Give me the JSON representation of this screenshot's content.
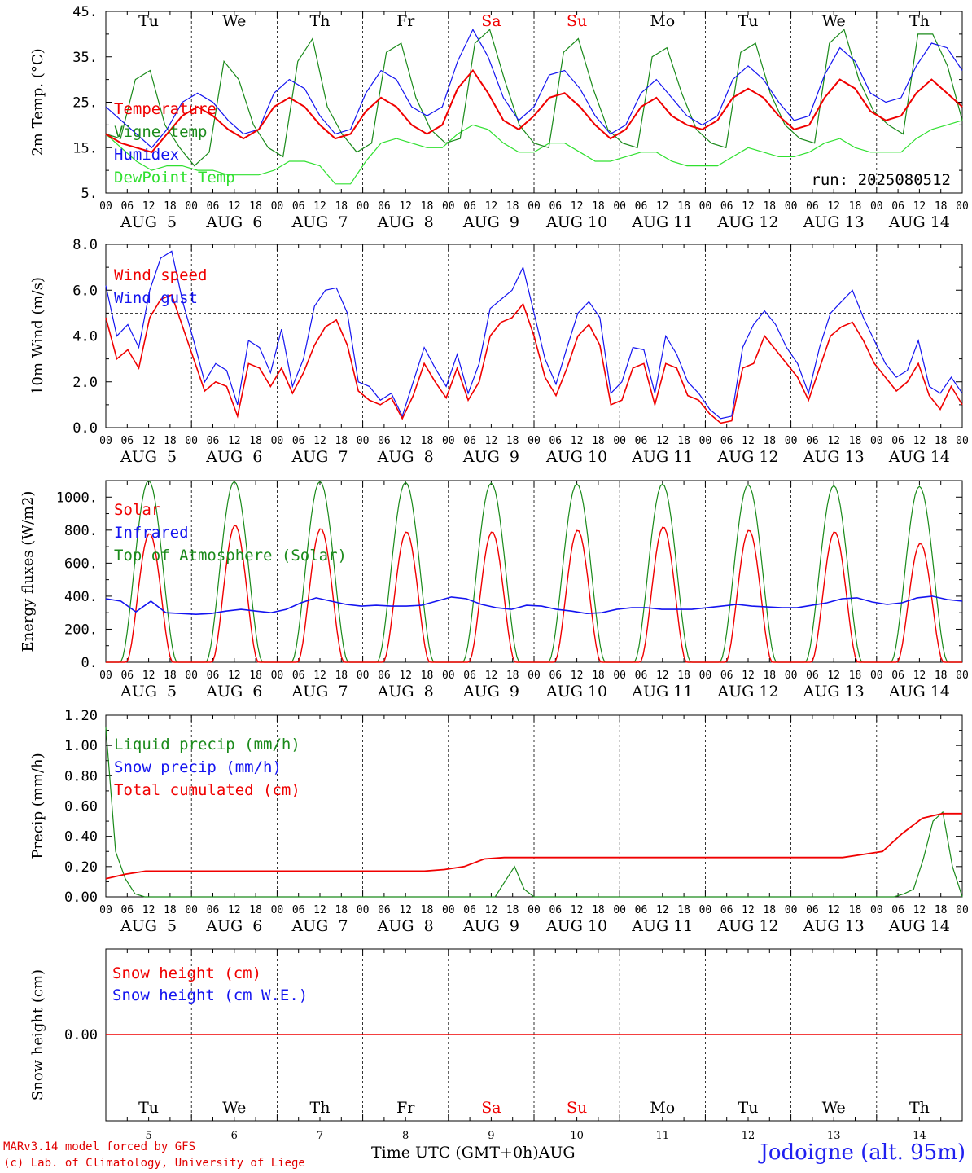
{
  "days": [
    "Tu",
    "We",
    "Th",
    "Fr",
    "Sa",
    "Su",
    "Mo",
    "Tu",
    "We",
    "Th"
  ],
  "weekend_days": [
    "Sa",
    "Su"
  ],
  "dates": [
    "AUG  5",
    "AUG  6",
    "AUG  7",
    "AUG  8",
    "AUG  9",
    "AUG 10",
    "AUG 11",
    "AUG 12",
    "AUG 13",
    "AUG 14"
  ],
  "date_numbers": [
    "5",
    "6",
    "7",
    "8",
    "9",
    "10",
    "11",
    "12",
    "13",
    "14"
  ],
  "hour_ticks": [
    "00",
    "06",
    "12",
    "18"
  ],
  "colors": {
    "red": "#f00000",
    "green": "#1a8a1a",
    "blue": "#1414f0",
    "light_green": "#30e030",
    "axis": "#000000"
  },
  "footer": {
    "model": "MARv3.14 model forced by GFS",
    "lab": "(c) Lab. of Climatology, University of Liege",
    "xlabel": "Time UTC (GMT+0h)AUG",
    "station": "Jodoigne (alt. 95m)"
  },
  "chart_data": [
    {
      "type": "line",
      "ylabel": "2m Temp. (°C)",
      "ylim": [
        5,
        45
      ],
      "yticks": [
        "5.",
        "15.",
        "25.",
        "35.",
        "45."
      ],
      "yvals": [
        5,
        15,
        25,
        35,
        45
      ],
      "run": "run: 2025080512",
      "series": [
        {
          "name": "Temperature",
          "color": "red",
          "values": [
            18,
            16,
            15,
            14,
            18,
            22,
            24,
            22,
            19,
            17,
            19,
            24,
            26,
            24,
            20,
            17,
            18,
            23,
            26,
            24,
            20,
            18,
            20,
            28,
            32,
            27,
            21,
            19,
            22,
            26,
            27,
            24,
            20,
            17,
            19,
            24,
            26,
            22,
            20,
            19,
            21,
            26,
            28,
            26,
            22,
            19,
            20,
            26,
            30,
            28,
            23,
            21,
            22,
            27,
            30,
            27,
            24
          ]
        },
        {
          "name": "Vigne temp",
          "color": "green",
          "values": [
            18,
            17,
            30,
            32,
            20,
            15,
            11,
            14,
            34,
            30,
            20,
            15,
            13,
            34,
            39,
            24,
            18,
            14,
            16,
            36,
            38,
            26,
            19,
            16,
            17,
            38,
            41,
            30,
            20,
            16,
            15,
            36,
            39,
            28,
            19,
            16,
            15,
            35,
            37,
            27,
            19,
            16,
            15,
            36,
            38,
            27,
            20,
            17,
            16,
            38,
            41,
            30,
            23,
            20,
            18,
            40,
            40,
            33,
            21
          ]
        },
        {
          "name": "Humidex",
          "color": "blue",
          "values": [
            24,
            21,
            18,
            15,
            19,
            25,
            27,
            25,
            21,
            18,
            19,
            27,
            30,
            28,
            22,
            18,
            19,
            27,
            32,
            30,
            24,
            22,
            24,
            34,
            41,
            35,
            26,
            21,
            24,
            31,
            32,
            28,
            22,
            18,
            20,
            27,
            30,
            26,
            22,
            20,
            22,
            30,
            33,
            30,
            25,
            21,
            22,
            31,
            37,
            34,
            27,
            25,
            26,
            33,
            38,
            37,
            32
          ]
        },
        {
          "name": "DewPoint Temp",
          "color": "light_green",
          "values": [
            18,
            15,
            12,
            10,
            11,
            11,
            10,
            10,
            9,
            9,
            9,
            10,
            12,
            12,
            11,
            7,
            7,
            12,
            16,
            17,
            16,
            15,
            15,
            18,
            20,
            19,
            16,
            14,
            14,
            16,
            16,
            14,
            12,
            12,
            13,
            14,
            14,
            12,
            11,
            11,
            11,
            13,
            15,
            14,
            13,
            13,
            14,
            16,
            17,
            15,
            14,
            14,
            14,
            17,
            19,
            20,
            21
          ]
        }
      ]
    },
    {
      "type": "line",
      "ylabel": "10m Wind (m/s)",
      "ylim": [
        0,
        8
      ],
      "yticks": [
        "0.0",
        "2.0",
        "4.0",
        "6.0",
        "8.0"
      ],
      "yvals": [
        0,
        2,
        4,
        6,
        8
      ],
      "hline": 5,
      "series": [
        {
          "name": "Wind speed",
          "color": "red",
          "values": [
            4.8,
            3.0,
            3.4,
            2.6,
            4.8,
            5.6,
            5.8,
            4.4,
            3.0,
            1.6,
            2.0,
            1.8,
            0.5,
            2.8,
            2.6,
            1.8,
            2.6,
            1.5,
            2.4,
            3.6,
            4.4,
            4.7,
            3.6,
            1.6,
            1.2,
            1.0,
            1.3,
            0.4,
            1.4,
            2.8,
            2.0,
            1.3,
            2.6,
            1.2,
            2.0,
            4.0,
            4.6,
            4.8,
            5.4,
            4.0,
            2.2,
            1.4,
            2.6,
            4.0,
            4.5,
            3.6,
            1.0,
            1.2,
            2.6,
            2.8,
            1.0,
            2.8,
            2.6,
            1.4,
            1.2,
            0.6,
            0.2,
            0.3,
            2.6,
            2.8,
            4.0,
            3.4,
            2.8,
            2.2,
            1.2,
            2.6,
            4.0,
            4.4,
            4.6,
            3.8,
            2.8,
            2.2,
            1.6,
            2.0,
            2.8,
            1.4,
            0.8,
            1.8,
            1.0
          ]
        },
        {
          "name": "Wind gust",
          "color": "blue",
          "values": [
            6.2,
            4.0,
            4.5,
            3.5,
            6.0,
            7.4,
            7.7,
            5.5,
            3.8,
            2.0,
            2.8,
            2.5,
            1.0,
            3.8,
            3.5,
            2.4,
            4.3,
            1.8,
            3.0,
            5.3,
            6.0,
            6.1,
            5.0,
            2.0,
            1.8,
            1.2,
            1.5,
            0.5,
            2.0,
            3.5,
            2.6,
            1.8,
            3.2,
            1.5,
            2.8,
            5.2,
            5.6,
            6.0,
            7.0,
            5.0,
            3.0,
            1.9,
            3.5,
            5.0,
            5.5,
            4.8,
            1.5,
            2.0,
            3.5,
            3.4,
            1.5,
            4.0,
            3.2,
            2.0,
            1.5,
            0.8,
            0.4,
            0.5,
            3.5,
            4.5,
            5.1,
            4.5,
            3.5,
            2.8,
            1.5,
            3.5,
            5.0,
            5.5,
            6.0,
            4.8,
            3.8,
            2.8,
            2.2,
            2.5,
            3.8,
            1.8,
            1.5,
            2.2,
            1.5
          ]
        }
      ]
    },
    {
      "type": "line",
      "ylabel": "Energy fluxes (W/m2)",
      "ylim": [
        0,
        1100
      ],
      "yticks": [
        "0.",
        "200.",
        "400.",
        "600.",
        "800.",
        "1000."
      ],
      "yvals": [
        0,
        200,
        400,
        600,
        800,
        1000
      ],
      "series": [
        {
          "name": "Solar",
          "color": "red",
          "peaks": [
            780,
            830,
            810,
            790,
            790,
            800,
            820,
            800,
            790,
            720
          ],
          "values_note_hidden": ""
        },
        {
          "name": "Infrared",
          "color": "blue",
          "values": [
            385,
            370,
            305,
            370,
            300,
            295,
            290,
            295,
            310,
            320,
            310,
            300,
            320,
            360,
            390,
            370,
            350,
            340,
            345,
            340,
            340,
            345,
            370,
            395,
            385,
            350,
            330,
            320,
            345,
            340,
            320,
            310,
            295,
            300,
            320,
            330,
            330,
            320,
            320,
            320,
            330,
            340,
            350,
            340,
            335,
            330,
            330,
            345,
            360,
            385,
            390,
            365,
            350,
            360,
            390,
            400,
            380,
            370
          ]
        },
        {
          "name": "Top of Atmosphere (Solar)",
          "color": "green",
          "peaks": [
            1100,
            1095,
            1095,
            1090,
            1085,
            1080,
            1080,
            1075,
            1070,
            1065
          ]
        }
      ]
    },
    {
      "type": "line",
      "ylabel": "Precip (mm/h)",
      "ylim": [
        0,
        1.2
      ],
      "yticks": [
        "0.00",
        "0.20",
        "0.40",
        "0.60",
        "0.80",
        "1.00",
        "1.20"
      ],
      "yvals": [
        0,
        0.2,
        0.4,
        0.6,
        0.8,
        1.0,
        1.2
      ],
      "series": [
        {
          "name": "Liquid precip (mm/h)",
          "color": "green",
          "values": [
            1.12,
            0.3,
            0.12,
            0.02,
            0,
            0,
            0,
            0,
            0,
            0,
            0,
            0,
            0,
            0,
            0,
            0,
            0,
            0,
            0,
            0,
            0,
            0,
            0,
            0,
            0,
            0,
            0,
            0,
            0,
            0,
            0,
            0,
            0,
            0,
            0,
            0,
            0,
            0,
            0,
            0,
            0,
            0.1,
            0.2,
            0.05,
            0,
            0,
            0,
            0,
            0,
            0,
            0,
            0,
            0,
            0,
            0,
            0,
            0,
            0,
            0,
            0,
            0,
            0,
            0,
            0,
            0,
            0,
            0,
            0,
            0,
            0,
            0,
            0,
            0,
            0,
            0,
            0,
            0,
            0,
            0,
            0,
            0,
            0,
            0.02,
            0.05,
            0.25,
            0.5,
            0.56,
            0.2,
            0
          ]
        },
        {
          "name": "Snow precip (mm/h)",
          "color": "blue",
          "values": []
        },
        {
          "name": "Total cumulated (cm)",
          "color": "red",
          "values": [
            0.12,
            0.15,
            0.17,
            0.17,
            0.17,
            0.17,
            0.17,
            0.17,
            0.17,
            0.17,
            0.17,
            0.17,
            0.17,
            0.17,
            0.17,
            0.17,
            0.17,
            0.18,
            0.2,
            0.25,
            0.26,
            0.26,
            0.26,
            0.26,
            0.26,
            0.26,
            0.26,
            0.26,
            0.26,
            0.26,
            0.26,
            0.26,
            0.26,
            0.26,
            0.26,
            0.26,
            0.26,
            0.26,
            0.28,
            0.3,
            0.42,
            0.52,
            0.55,
            0.55
          ]
        }
      ]
    },
    {
      "type": "line",
      "ylabel": "Snow height (cm)",
      "yticks": [
        "0.00"
      ],
      "series": [
        {
          "name": "Snow height (cm)",
          "color": "red",
          "values": [
            0,
            0
          ]
        },
        {
          "name": "Snow height (cm W.E.)",
          "color": "blue",
          "values": []
        }
      ]
    }
  ]
}
